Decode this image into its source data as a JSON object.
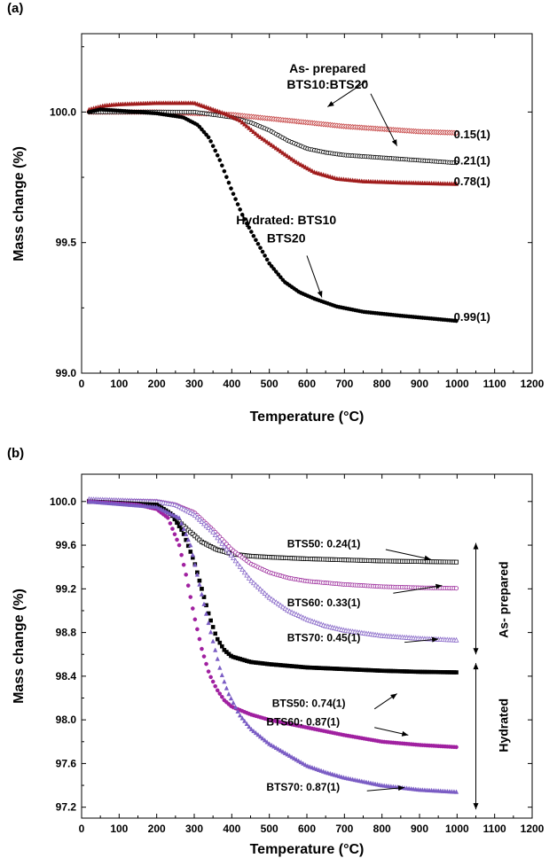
{
  "chart_data": [
    {
      "panel": "(a)",
      "type": "scatter",
      "xlabel": "Temperature (°C)",
      "ylabel": "Mass change (%)",
      "xlim": [
        0,
        1200
      ],
      "ylim": [
        99.0,
        100.3
      ],
      "x_ticks": [
        "0",
        "100",
        "200",
        "300",
        "400",
        "500",
        "600",
        "700",
        "800",
        "900",
        "1000",
        "1100",
        "1200"
      ],
      "y_ticks": [
        "99.0",
        "99.5",
        "100.0"
      ],
      "series": [
        {
          "color": "#c23a3a",
          "marker": "diamond-open",
          "x": [
            20,
            100,
            200,
            300,
            400,
            500,
            600,
            700,
            800,
            900,
            1000
          ],
          "y": [
            100.0,
            100.0,
            100.0,
            99.995,
            99.99,
            99.975,
            99.96,
            99.945,
            99.935,
            99.925,
            99.92
          ]
        },
        {
          "color": "#000000",
          "marker": "circle-open",
          "x": [
            20,
            100,
            200,
            300,
            400,
            450,
            500,
            550,
            600,
            650,
            700,
            800,
            900,
            1000
          ],
          "y": [
            100.0,
            100.0,
            100.0,
            100.0,
            99.98,
            99.96,
            99.93,
            99.89,
            99.86,
            99.845,
            99.835,
            99.825,
            99.815,
            99.805
          ]
        },
        {
          "color": "#a01c1c",
          "marker": "triangle",
          "x": [
            20,
            60,
            100,
            200,
            300,
            330,
            380,
            420,
            470,
            520,
            570,
            620,
            680,
            750,
            850,
            1000
          ],
          "y": [
            100.01,
            100.025,
            100.03,
            100.035,
            100.035,
            100.02,
            99.995,
            99.97,
            99.91,
            99.86,
            99.81,
            99.77,
            99.745,
            99.735,
            99.73,
            99.725
          ]
        },
        {
          "color": "#000000",
          "marker": "circle",
          "x": [
            20,
            50,
            100,
            200,
            270,
            310,
            340,
            370,
            400,
            430,
            460,
            500,
            540,
            580,
            620,
            680,
            750,
            850,
            1000
          ],
          "y": [
            100.0,
            100.01,
            100.005,
            99.995,
            99.98,
            99.95,
            99.9,
            99.81,
            99.7,
            99.6,
            99.52,
            99.42,
            99.35,
            99.31,
            99.285,
            99.255,
            99.235,
            99.22,
            99.2
          ]
        }
      ],
      "annotations": [
        {
          "text": "As- prepared",
          "x": 655,
          "y": 100.15
        },
        {
          "text": "BTS10:BTS20",
          "x": 655,
          "y": 100.09
        },
        {
          "text": "Hydrated: BTS10",
          "x": 545,
          "y": 99.57
        },
        {
          "text": "BTS20",
          "x": 545,
          "y": 99.5
        },
        {
          "text": "0.15(1)",
          "x": 1040,
          "y": 99.9
        },
        {
          "text": "0.21(1)",
          "x": 1040,
          "y": 99.8
        },
        {
          "text": "0.78(1)",
          "x": 1040,
          "y": 99.72
        },
        {
          "text": "0.99(1)",
          "x": 1040,
          "y": 99.2
        }
      ],
      "arrows": [
        {
          "from": [
            770,
            100.07
          ],
          "to": [
            840,
            99.87
          ]
        },
        {
          "from": [
            760,
            100.12
          ],
          "to": [
            655,
            100.02
          ]
        },
        {
          "from": [
            600,
            99.45
          ],
          "to": [
            640,
            99.29
          ]
        }
      ]
    },
    {
      "panel": "(b)",
      "type": "scatter",
      "xlabel": "Temperature (°C)",
      "ylabel": "Mass change (%)",
      "xlim": [
        0,
        1200
      ],
      "ylim": [
        97.1,
        100.25
      ],
      "x_ticks": [
        "0",
        "100",
        "200",
        "300",
        "400",
        "500",
        "600",
        "700",
        "800",
        "900",
        "1000",
        "1100",
        "1200"
      ],
      "y_ticks": [
        "97.2",
        "97.6",
        "98.0",
        "98.4",
        "98.8",
        "99.2",
        "99.6",
        "100.0"
      ],
      "series": [
        {
          "color": "#000000",
          "marker": "square-open",
          "x": [
            20,
            150,
            200,
            240,
            280,
            320,
            360,
            400,
            450,
            500,
            600,
            700,
            800,
            900,
            1000
          ],
          "y": [
            100.0,
            100.0,
            99.97,
            99.88,
            99.75,
            99.63,
            99.56,
            99.52,
            99.5,
            99.49,
            99.475,
            99.465,
            99.455,
            99.45,
            99.445
          ]
        },
        {
          "color": "#9b2a9b",
          "marker": "circle-open",
          "x": [
            20,
            200,
            250,
            300,
            350,
            400,
            450,
            500,
            550,
            600,
            700,
            800,
            900,
            1000
          ],
          "y": [
            100.01,
            100.0,
            99.97,
            99.9,
            99.74,
            99.56,
            99.43,
            99.35,
            99.3,
            99.27,
            99.24,
            99.22,
            99.21,
            99.205
          ]
        },
        {
          "color": "#8a6bc9",
          "marker": "triangle-open",
          "x": [
            20,
            200,
            250,
            300,
            350,
            400,
            450,
            500,
            550,
            600,
            650,
            700,
            800,
            900,
            1000
          ],
          "y": [
            100.02,
            100.0,
            99.97,
            99.88,
            99.72,
            99.5,
            99.28,
            99.12,
            99.0,
            98.92,
            98.86,
            98.82,
            98.77,
            98.745,
            98.73
          ]
        },
        {
          "color": "#000000",
          "marker": "square",
          "x": [
            20,
            200,
            240,
            270,
            300,
            320,
            340,
            360,
            380,
            400,
            450,
            500,
            600,
            700,
            800,
            900,
            1000
          ],
          "y": [
            100.0,
            99.97,
            99.88,
            99.72,
            99.45,
            99.2,
            98.95,
            98.75,
            98.64,
            98.58,
            98.53,
            98.51,
            98.48,
            98.465,
            98.45,
            98.44,
            98.435
          ]
        },
        {
          "color": "#a020a0",
          "marker": "circle",
          "x": [
            20,
            150,
            200,
            230,
            260,
            280,
            300,
            320,
            340,
            360,
            380,
            400,
            450,
            500,
            600,
            700,
            800,
            900,
            1000
          ],
          "y": [
            100.0,
            99.97,
            99.93,
            99.85,
            99.6,
            99.3,
            98.95,
            98.65,
            98.42,
            98.28,
            98.18,
            98.12,
            98.05,
            98.0,
            97.93,
            97.86,
            97.8,
            97.77,
            97.75
          ]
        },
        {
          "color": "#7a5cc4",
          "marker": "triangle",
          "x": [
            20,
            200,
            260,
            290,
            310,
            330,
            350,
            370,
            390,
            420,
            450,
            500,
            550,
            600,
            650,
            700,
            800,
            900,
            1000
          ],
          "y": [
            100.0,
            99.95,
            99.85,
            99.6,
            99.3,
            99.0,
            98.72,
            98.45,
            98.25,
            98.05,
            97.92,
            97.78,
            97.68,
            97.58,
            97.52,
            97.47,
            97.4,
            97.36,
            97.34
          ]
        }
      ],
      "annotations": [
        {
          "text": "BTS50: 0.24(1)",
          "x": 645,
          "y": 99.58
        },
        {
          "text": "BTS60: 0.33(1)",
          "x": 645,
          "y": 99.04
        },
        {
          "text": "BTS70: 0.45(1)",
          "x": 645,
          "y": 98.72
        },
        {
          "text": "BTS50: 0.74(1)",
          "x": 605,
          "y": 98.12
        },
        {
          "text": "BTS60: 0.87(1)",
          "x": 590,
          "y": 97.95
        },
        {
          "text": "BTS70: 0.87(1)",
          "x": 590,
          "y": 97.35
        },
        {
          "text": "As- prepared",
          "x": 1135,
          "y": 99.1
        },
        {
          "text": "Hydrated",
          "x": 1135,
          "y": 97.95
        }
      ],
      "arrows": [
        {
          "from": [
            810,
            99.56
          ],
          "to": [
            930,
            99.47
          ]
        },
        {
          "from": [
            830,
            99.16
          ],
          "to": [
            960,
            99.23
          ]
        },
        {
          "from": [
            860,
            98.71
          ],
          "to": [
            950,
            98.74
          ]
        },
        {
          "from": [
            780,
            98.1
          ],
          "to": [
            840,
            98.24
          ]
        },
        {
          "from": [
            780,
            97.93
          ],
          "to": [
            870,
            97.86
          ]
        },
        {
          "from": [
            760,
            97.35
          ],
          "to": [
            860,
            97.38
          ]
        }
      ],
      "brackets": [
        {
          "x": 1050,
          "y_top": 99.62,
          "y_bottom": 98.6
        },
        {
          "x": 1050,
          "y_top": 98.52,
          "y_bottom": 97.18
        }
      ]
    }
  ]
}
